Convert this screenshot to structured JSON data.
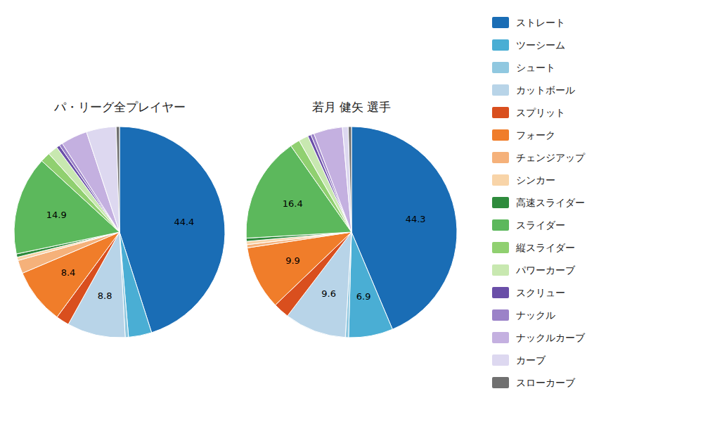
{
  "chart_data": [
    {
      "type": "pie",
      "title": "パ・リーグ全プレイヤー",
      "categories": [
        "ストレート",
        "ツーシーム",
        "シュート",
        "カットボール",
        "スプリット",
        "フォーク",
        "チェンジアップ",
        "シンカー",
        "高速スライダー",
        "スライダー",
        "縦スライダー",
        "パワーカーブ",
        "スクリュー",
        "ナックル",
        "ナックルカーブ",
        "カーブ",
        "スローカーブ"
      ],
      "colors": [
        "#1a6db5",
        "#4aaed4",
        "#90c8e0",
        "#b8d4e8",
        "#d94f1e",
        "#f07d2a",
        "#f5b17a",
        "#f8d4a8",
        "#2e8b3c",
        "#5cb85c",
        "#90d070",
        "#c8e8b0",
        "#6a4fa8",
        "#9b82c8",
        "#c4b0e0",
        "#ddd8f0",
        "#707070"
      ],
      "values": [
        44.4,
        3.5,
        0.5,
        8.8,
        2.0,
        8.4,
        2.0,
        0.5,
        0.5,
        14.9,
        1.5,
        1.5,
        0.5,
        0.5,
        4.0,
        4.5,
        0.5
      ],
      "value_labels": [
        "44.4",
        null,
        null,
        "8.8",
        null,
        "8.4",
        null,
        null,
        null,
        "14.9",
        null,
        null,
        null,
        null,
        null,
        null,
        null
      ],
      "data_labels": true,
      "legend": "right"
    },
    {
      "type": "pie",
      "title": "若月 健矢  選手",
      "categories": [
        "ストレート",
        "ツーシーム",
        "シュート",
        "カットボール",
        "スプリット",
        "フォーク",
        "チェンジアップ",
        "シンカー",
        "高速スライダー",
        "スライダー",
        "縦スライダー",
        "パワーカーブ",
        "スクリュー",
        "ナックル",
        "ナックルカーブ",
        "カーブ",
        "スローカーブ"
      ],
      "colors": [
        "#1a6db5",
        "#4aaed4",
        "#90c8e0",
        "#b8d4e8",
        "#d94f1e",
        "#f07d2a",
        "#f5b17a",
        "#f8d4a8",
        "#2e8b3c",
        "#5cb85c",
        "#90d070",
        "#c8e8b0",
        "#6a4fa8",
        "#9b82c8",
        "#c4b0e0",
        "#ddd8f0",
        "#707070"
      ],
      "values": [
        44.3,
        6.9,
        0.5,
        9.6,
        2.5,
        9.9,
        0.5,
        0.5,
        0.5,
        16.4,
        1.5,
        1.5,
        0.5,
        0.5,
        4.5,
        0.9,
        0.5
      ],
      "value_labels": [
        "44.3",
        "6.9",
        null,
        "9.6",
        null,
        "9.9",
        null,
        null,
        null,
        "16.4",
        null,
        null,
        null,
        null,
        null,
        null,
        null
      ],
      "data_labels": true
    }
  ]
}
